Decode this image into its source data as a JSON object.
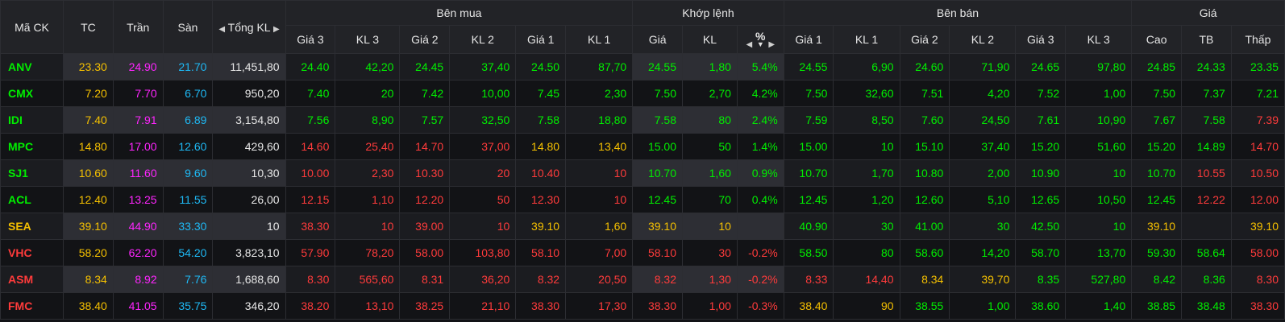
{
  "header": {
    "ma_ck": "Mã CK",
    "tc": "TC",
    "tran": "Trần",
    "san": "Sàn",
    "tong_kl": "Tổng KL",
    "ben_mua": "Bên mua",
    "khop_lenh": "Khớp lệnh",
    "ben_ban": "Bên bán",
    "gia": "Giá",
    "sub": {
      "gia3": "Giá 3",
      "kl3": "KL 3",
      "gia2": "Giá 2",
      "kl2": "KL 2",
      "gia1": "Giá 1",
      "kl1": "KL 1",
      "khop_gia": "Giá",
      "khop_kl": "KL",
      "pct": "%",
      "sgia1": "Giá 1",
      "skl1": "KL 1",
      "sgia2": "Giá 2",
      "skl2": "KL 2",
      "sgia3": "Giá 3",
      "skl3": "KL 3",
      "cao": "Cao",
      "tb": "TB",
      "thap": "Thấp"
    }
  },
  "icons": {
    "left": "triangle-left-icon",
    "right": "triangle-right-icon",
    "down": "triangle-down-icon"
  },
  "colors": {
    "green": "#00ee00",
    "red": "#ff3b3b",
    "yellow": "#f5c000",
    "purple": "#ff25ff",
    "cyan": "#1eb9f5",
    "white": "#e6e6e6"
  },
  "columns": [
    "sym",
    "tc",
    "tran",
    "san",
    "tong_kl",
    "b_g3",
    "b_kl3",
    "b_g2",
    "b_kl2",
    "b_g1",
    "b_kl1",
    "k_gia",
    "k_kl",
    "k_pct",
    "s_g1",
    "s_kl1",
    "s_g2",
    "s_kl2",
    "s_g3",
    "s_kl3",
    "cao",
    "tb",
    "thap"
  ],
  "rows": [
    {
      "sym": [
        "ANV",
        "g"
      ],
      "tc": [
        "23.30",
        "y"
      ],
      "tran": [
        "24.90",
        "p"
      ],
      "san": [
        "21.70",
        "c"
      ],
      "tong_kl": [
        "11,451,80",
        "w"
      ],
      "b_g3": [
        "24.40",
        "g"
      ],
      "b_kl3": [
        "42,20",
        "g"
      ],
      "b_g2": [
        "24.45",
        "g"
      ],
      "b_kl2": [
        "37,40",
        "g"
      ],
      "b_g1": [
        "24.50",
        "g"
      ],
      "b_kl1": [
        "87,70",
        "g"
      ],
      "k_gia": [
        "24.55",
        "g"
      ],
      "k_kl": [
        "1,80",
        "g"
      ],
      "k_pct": [
        "5.4%",
        "g"
      ],
      "s_g1": [
        "24.55",
        "g"
      ],
      "s_kl1": [
        "6,90",
        "g"
      ],
      "s_g2": [
        "24.60",
        "g"
      ],
      "s_kl2": [
        "71,90",
        "g"
      ],
      "s_g3": [
        "24.65",
        "g"
      ],
      "s_kl3": [
        "97,80",
        "g"
      ],
      "cao": [
        "24.85",
        "g"
      ],
      "tb": [
        "24.33",
        "g"
      ],
      "thap": [
        "23.35",
        "g"
      ]
    },
    {
      "sym": [
        "CMX",
        "g"
      ],
      "tc": [
        "7.20",
        "y"
      ],
      "tran": [
        "7.70",
        "p"
      ],
      "san": [
        "6.70",
        "c"
      ],
      "tong_kl": [
        "950,20",
        "w"
      ],
      "b_g3": [
        "7.40",
        "g"
      ],
      "b_kl3": [
        "20",
        "g"
      ],
      "b_g2": [
        "7.42",
        "g"
      ],
      "b_kl2": [
        "10,00",
        "g"
      ],
      "b_g1": [
        "7.45",
        "g"
      ],
      "b_kl1": [
        "2,30",
        "g"
      ],
      "k_gia": [
        "7.50",
        "g"
      ],
      "k_kl": [
        "2,70",
        "g"
      ],
      "k_pct": [
        "4.2%",
        "g"
      ],
      "s_g1": [
        "7.50",
        "g"
      ],
      "s_kl1": [
        "32,60",
        "g"
      ],
      "s_g2": [
        "7.51",
        "g"
      ],
      "s_kl2": [
        "4,20",
        "g"
      ],
      "s_g3": [
        "7.52",
        "g"
      ],
      "s_kl3": [
        "1,00",
        "g"
      ],
      "cao": [
        "7.50",
        "g"
      ],
      "tb": [
        "7.37",
        "g"
      ],
      "thap": [
        "7.21",
        "g"
      ]
    },
    {
      "sym": [
        "IDI",
        "g"
      ],
      "tc": [
        "7.40",
        "y"
      ],
      "tran": [
        "7.91",
        "p"
      ],
      "san": [
        "6.89",
        "c"
      ],
      "tong_kl": [
        "3,154,80",
        "w"
      ],
      "b_g3": [
        "7.56",
        "g"
      ],
      "b_kl3": [
        "8,90",
        "g"
      ],
      "b_g2": [
        "7.57",
        "g"
      ],
      "b_kl2": [
        "32,50",
        "g"
      ],
      "b_g1": [
        "7.58",
        "g"
      ],
      "b_kl1": [
        "18,80",
        "g"
      ],
      "k_gia": [
        "7.58",
        "g"
      ],
      "k_kl": [
        "80",
        "g"
      ],
      "k_pct": [
        "2.4%",
        "g"
      ],
      "s_g1": [
        "7.59",
        "g"
      ],
      "s_kl1": [
        "8,50",
        "g"
      ],
      "s_g2": [
        "7.60",
        "g"
      ],
      "s_kl2": [
        "24,50",
        "g"
      ],
      "s_g3": [
        "7.61",
        "g"
      ],
      "s_kl3": [
        "10,90",
        "g"
      ],
      "cao": [
        "7.67",
        "g"
      ],
      "tb": [
        "7.58",
        "g"
      ],
      "thap": [
        "7.39",
        "r"
      ]
    },
    {
      "sym": [
        "MPC",
        "g"
      ],
      "tc": [
        "14.80",
        "y"
      ],
      "tran": [
        "17.00",
        "p"
      ],
      "san": [
        "12.60",
        "c"
      ],
      "tong_kl": [
        "429,60",
        "w"
      ],
      "b_g3": [
        "14.60",
        "r"
      ],
      "b_kl3": [
        "25,40",
        "r"
      ],
      "b_g2": [
        "14.70",
        "r"
      ],
      "b_kl2": [
        "37,00",
        "r"
      ],
      "b_g1": [
        "14.80",
        "y"
      ],
      "b_kl1": [
        "13,40",
        "y"
      ],
      "k_gia": [
        "15.00",
        "g"
      ],
      "k_kl": [
        "50",
        "g"
      ],
      "k_pct": [
        "1.4%",
        "g"
      ],
      "s_g1": [
        "15.00",
        "g"
      ],
      "s_kl1": [
        "10",
        "g"
      ],
      "s_g2": [
        "15.10",
        "g"
      ],
      "s_kl2": [
        "37,40",
        "g"
      ],
      "s_g3": [
        "15.20",
        "g"
      ],
      "s_kl3": [
        "51,60",
        "g"
      ],
      "cao": [
        "15.20",
        "g"
      ],
      "tb": [
        "14.89",
        "g"
      ],
      "thap": [
        "14.70",
        "r"
      ]
    },
    {
      "sym": [
        "SJ1",
        "g"
      ],
      "tc": [
        "10.60",
        "y"
      ],
      "tran": [
        "11.60",
        "p"
      ],
      "san": [
        "9.60",
        "c"
      ],
      "tong_kl": [
        "10,30",
        "w"
      ],
      "b_g3": [
        "10.00",
        "r"
      ],
      "b_kl3": [
        "2,30",
        "r"
      ],
      "b_g2": [
        "10.30",
        "r"
      ],
      "b_kl2": [
        "20",
        "r"
      ],
      "b_g1": [
        "10.40",
        "r"
      ],
      "b_kl1": [
        "10",
        "r"
      ],
      "k_gia": [
        "10.70",
        "g"
      ],
      "k_kl": [
        "1,60",
        "g"
      ],
      "k_pct": [
        "0.9%",
        "g"
      ],
      "s_g1": [
        "10.70",
        "g"
      ],
      "s_kl1": [
        "1,70",
        "g"
      ],
      "s_g2": [
        "10.80",
        "g"
      ],
      "s_kl2": [
        "2,00",
        "g"
      ],
      "s_g3": [
        "10.90",
        "g"
      ],
      "s_kl3": [
        "10",
        "g"
      ],
      "cao": [
        "10.70",
        "g"
      ],
      "tb": [
        "10.55",
        "r"
      ],
      "thap": [
        "10.50",
        "r"
      ]
    },
    {
      "sym": [
        "ACL",
        "g"
      ],
      "tc": [
        "12.40",
        "y"
      ],
      "tran": [
        "13.25",
        "p"
      ],
      "san": [
        "11.55",
        "c"
      ],
      "tong_kl": [
        "26,00",
        "w"
      ],
      "b_g3": [
        "12.15",
        "r"
      ],
      "b_kl3": [
        "1,10",
        "r"
      ],
      "b_g2": [
        "12.20",
        "r"
      ],
      "b_kl2": [
        "50",
        "r"
      ],
      "b_g1": [
        "12.30",
        "r"
      ],
      "b_kl1": [
        "10",
        "r"
      ],
      "k_gia": [
        "12.45",
        "g"
      ],
      "k_kl": [
        "70",
        "g"
      ],
      "k_pct": [
        "0.4%",
        "g"
      ],
      "s_g1": [
        "12.45",
        "g"
      ],
      "s_kl1": [
        "1,20",
        "g"
      ],
      "s_g2": [
        "12.60",
        "g"
      ],
      "s_kl2": [
        "5,10",
        "g"
      ],
      "s_g3": [
        "12.65",
        "g"
      ],
      "s_kl3": [
        "10,50",
        "g"
      ],
      "cao": [
        "12.45",
        "g"
      ],
      "tb": [
        "12.22",
        "r"
      ],
      "thap": [
        "12.00",
        "r"
      ]
    },
    {
      "sym": [
        "SEA",
        "y"
      ],
      "tc": [
        "39.10",
        "y"
      ],
      "tran": [
        "44.90",
        "p"
      ],
      "san": [
        "33.30",
        "c"
      ],
      "tong_kl": [
        "10",
        "w"
      ],
      "b_g3": [
        "38.30",
        "r"
      ],
      "b_kl3": [
        "10",
        "r"
      ],
      "b_g2": [
        "39.00",
        "r"
      ],
      "b_kl2": [
        "10",
        "r"
      ],
      "b_g1": [
        "39.10",
        "y"
      ],
      "b_kl1": [
        "1,60",
        "y"
      ],
      "k_gia": [
        "39.10",
        "y"
      ],
      "k_kl": [
        "10",
        "y"
      ],
      "k_pct": [
        "",
        "y"
      ],
      "s_g1": [
        "40.90",
        "g"
      ],
      "s_kl1": [
        "30",
        "g"
      ],
      "s_g2": [
        "41.00",
        "g"
      ],
      "s_kl2": [
        "30",
        "g"
      ],
      "s_g3": [
        "42.50",
        "g"
      ],
      "s_kl3": [
        "10",
        "g"
      ],
      "cao": [
        "39.10",
        "y"
      ],
      "tb": [
        "",
        "y"
      ],
      "thap": [
        "39.10",
        "y"
      ]
    },
    {
      "sym": [
        "VHC",
        "r"
      ],
      "tc": [
        "58.20",
        "y"
      ],
      "tran": [
        "62.20",
        "p"
      ],
      "san": [
        "54.20",
        "c"
      ],
      "tong_kl": [
        "3,823,10",
        "w"
      ],
      "b_g3": [
        "57.90",
        "r"
      ],
      "b_kl3": [
        "78,20",
        "r"
      ],
      "b_g2": [
        "58.00",
        "r"
      ],
      "b_kl2": [
        "103,80",
        "r"
      ],
      "b_g1": [
        "58.10",
        "r"
      ],
      "b_kl1": [
        "7,00",
        "r"
      ],
      "k_gia": [
        "58.10",
        "r"
      ],
      "k_kl": [
        "30",
        "r"
      ],
      "k_pct": [
        "-0.2%",
        "r"
      ],
      "s_g1": [
        "58.50",
        "g"
      ],
      "s_kl1": [
        "80",
        "g"
      ],
      "s_g2": [
        "58.60",
        "g"
      ],
      "s_kl2": [
        "14,20",
        "g"
      ],
      "s_g3": [
        "58.70",
        "g"
      ],
      "s_kl3": [
        "13,70",
        "g"
      ],
      "cao": [
        "59.30",
        "g"
      ],
      "tb": [
        "58.64",
        "g"
      ],
      "thap": [
        "58.00",
        "r"
      ]
    },
    {
      "sym": [
        "ASM",
        "r"
      ],
      "tc": [
        "8.34",
        "y"
      ],
      "tran": [
        "8.92",
        "p"
      ],
      "san": [
        "7.76",
        "c"
      ],
      "tong_kl": [
        "1,688,60",
        "w"
      ],
      "b_g3": [
        "8.30",
        "r"
      ],
      "b_kl3": [
        "565,60",
        "r"
      ],
      "b_g2": [
        "8.31",
        "r"
      ],
      "b_kl2": [
        "36,20",
        "r"
      ],
      "b_g1": [
        "8.32",
        "r"
      ],
      "b_kl1": [
        "20,50",
        "r"
      ],
      "k_gia": [
        "8.32",
        "r"
      ],
      "k_kl": [
        "1,30",
        "r"
      ],
      "k_pct": [
        "-0.2%",
        "r"
      ],
      "s_g1": [
        "8.33",
        "r"
      ],
      "s_kl1": [
        "14,40",
        "r"
      ],
      "s_g2": [
        "8.34",
        "y"
      ],
      "s_kl2": [
        "39,70",
        "y"
      ],
      "s_g3": [
        "8.35",
        "g"
      ],
      "s_kl3": [
        "527,80",
        "g"
      ],
      "cao": [
        "8.42",
        "g"
      ],
      "tb": [
        "8.36",
        "g"
      ],
      "thap": [
        "8.30",
        "r"
      ]
    },
    {
      "sym": [
        "FMC",
        "r"
      ],
      "tc": [
        "38.40",
        "y"
      ],
      "tran": [
        "41.05",
        "p"
      ],
      "san": [
        "35.75",
        "c"
      ],
      "tong_kl": [
        "346,20",
        "w"
      ],
      "b_g3": [
        "38.20",
        "r"
      ],
      "b_kl3": [
        "13,10",
        "r"
      ],
      "b_g2": [
        "38.25",
        "r"
      ],
      "b_kl2": [
        "21,10",
        "r"
      ],
      "b_g1": [
        "38.30",
        "r"
      ],
      "b_kl1": [
        "17,30",
        "r"
      ],
      "k_gia": [
        "38.30",
        "r"
      ],
      "k_kl": [
        "1,00",
        "r"
      ],
      "k_pct": [
        "-0.3%",
        "r"
      ],
      "s_g1": [
        "38.40",
        "y"
      ],
      "s_kl1": [
        "90",
        "y"
      ],
      "s_g2": [
        "38.55",
        "g"
      ],
      "s_kl2": [
        "1,00",
        "g"
      ],
      "s_g3": [
        "38.60",
        "g"
      ],
      "s_kl3": [
        "1,40",
        "g"
      ],
      "cao": [
        "38.85",
        "g"
      ],
      "tb": [
        "38.48",
        "g"
      ],
      "thap": [
        "38.30",
        "r"
      ]
    }
  ]
}
